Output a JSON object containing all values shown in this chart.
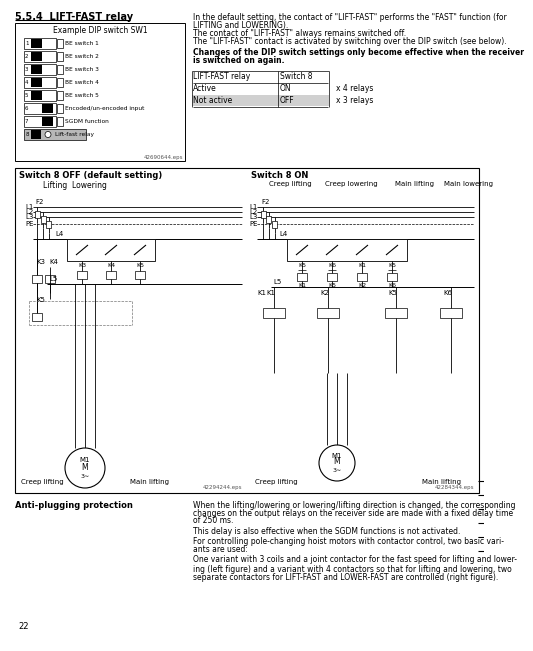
{
  "bg_color": "#ffffff",
  "title": "5.5.4  LIFT-FAST relay",
  "dip_title": "Example DIP switch SW1",
  "dip_labels": [
    "BE switch 1",
    "BE switch 2",
    "BE switch 3",
    "BE switch 4",
    "BE switch 5",
    "Encoded/un-encoded input",
    "SGDM function",
    "Lift-fast relay"
  ],
  "dip_code": "42690644.eps",
  "right_para": [
    "In the default setting, the contact of \"LIFT-FAST\" performs the \"FAST\" function (for",
    "LIFTING and LOWERING).",
    "The contact of \"LIFT-FAST\" always remains switched off.",
    "The \"LIFT-FAST\" contact is activated by switching over the DIP switch (see below)."
  ],
  "bold_line1": "Changes of the DIP switch settings only become effective when the receiver",
  "bold_line2": "is switched on again.",
  "tbl_h1": "LIFT-FAST relay",
  "tbl_h2": "Switch 8",
  "tbl_r1": [
    "Active",
    "ON",
    "x 4 relays"
  ],
  "tbl_r2": [
    "Not active",
    "OFF",
    "x 3 relays"
  ],
  "diag_left_title": "Switch 8 OFF (default setting)",
  "diag_left_sub": "Lifting  Lowering",
  "diag_right_title": "Switch 8 ON",
  "diag_right_cols": [
    "Creep lifting",
    "Creep lowering",
    "Main lifting",
    "Main lowering"
  ],
  "bus_labels": [
    "L1",
    "L2",
    "L3",
    "PE"
  ],
  "left_motor_labels": [
    "Creep lifting",
    "Main lifting"
  ],
  "right_motor_labels": [
    "Creep lifting",
    "Main lifting"
  ],
  "code2": "42294244.eps",
  "code3": "42284344.eps",
  "anti_title": "Anti-plugging protection",
  "anti_text": [
    "When the lifting/lowering or lowering/lifting direction is changed, the corresponding",
    "changes on the output relays on the receiver side are made with a fixed delay time",
    "of 250 ms.",
    "This delay is also effective when the SGDM functions is not activated.",
    "For controlling pole-changing hoist motors with contactor control, two basic vari-",
    "ants are used:",
    "One variant with 3 coils and a joint contactor for the fast speed for lifting and lower-",
    "ing (left figure) and a variant with 4 contactors so that for lifting and lowering, two",
    "separate contactors for LIFT-FAST and LOWER-FAST are controlled (right figure)."
  ],
  "page_num": "22"
}
